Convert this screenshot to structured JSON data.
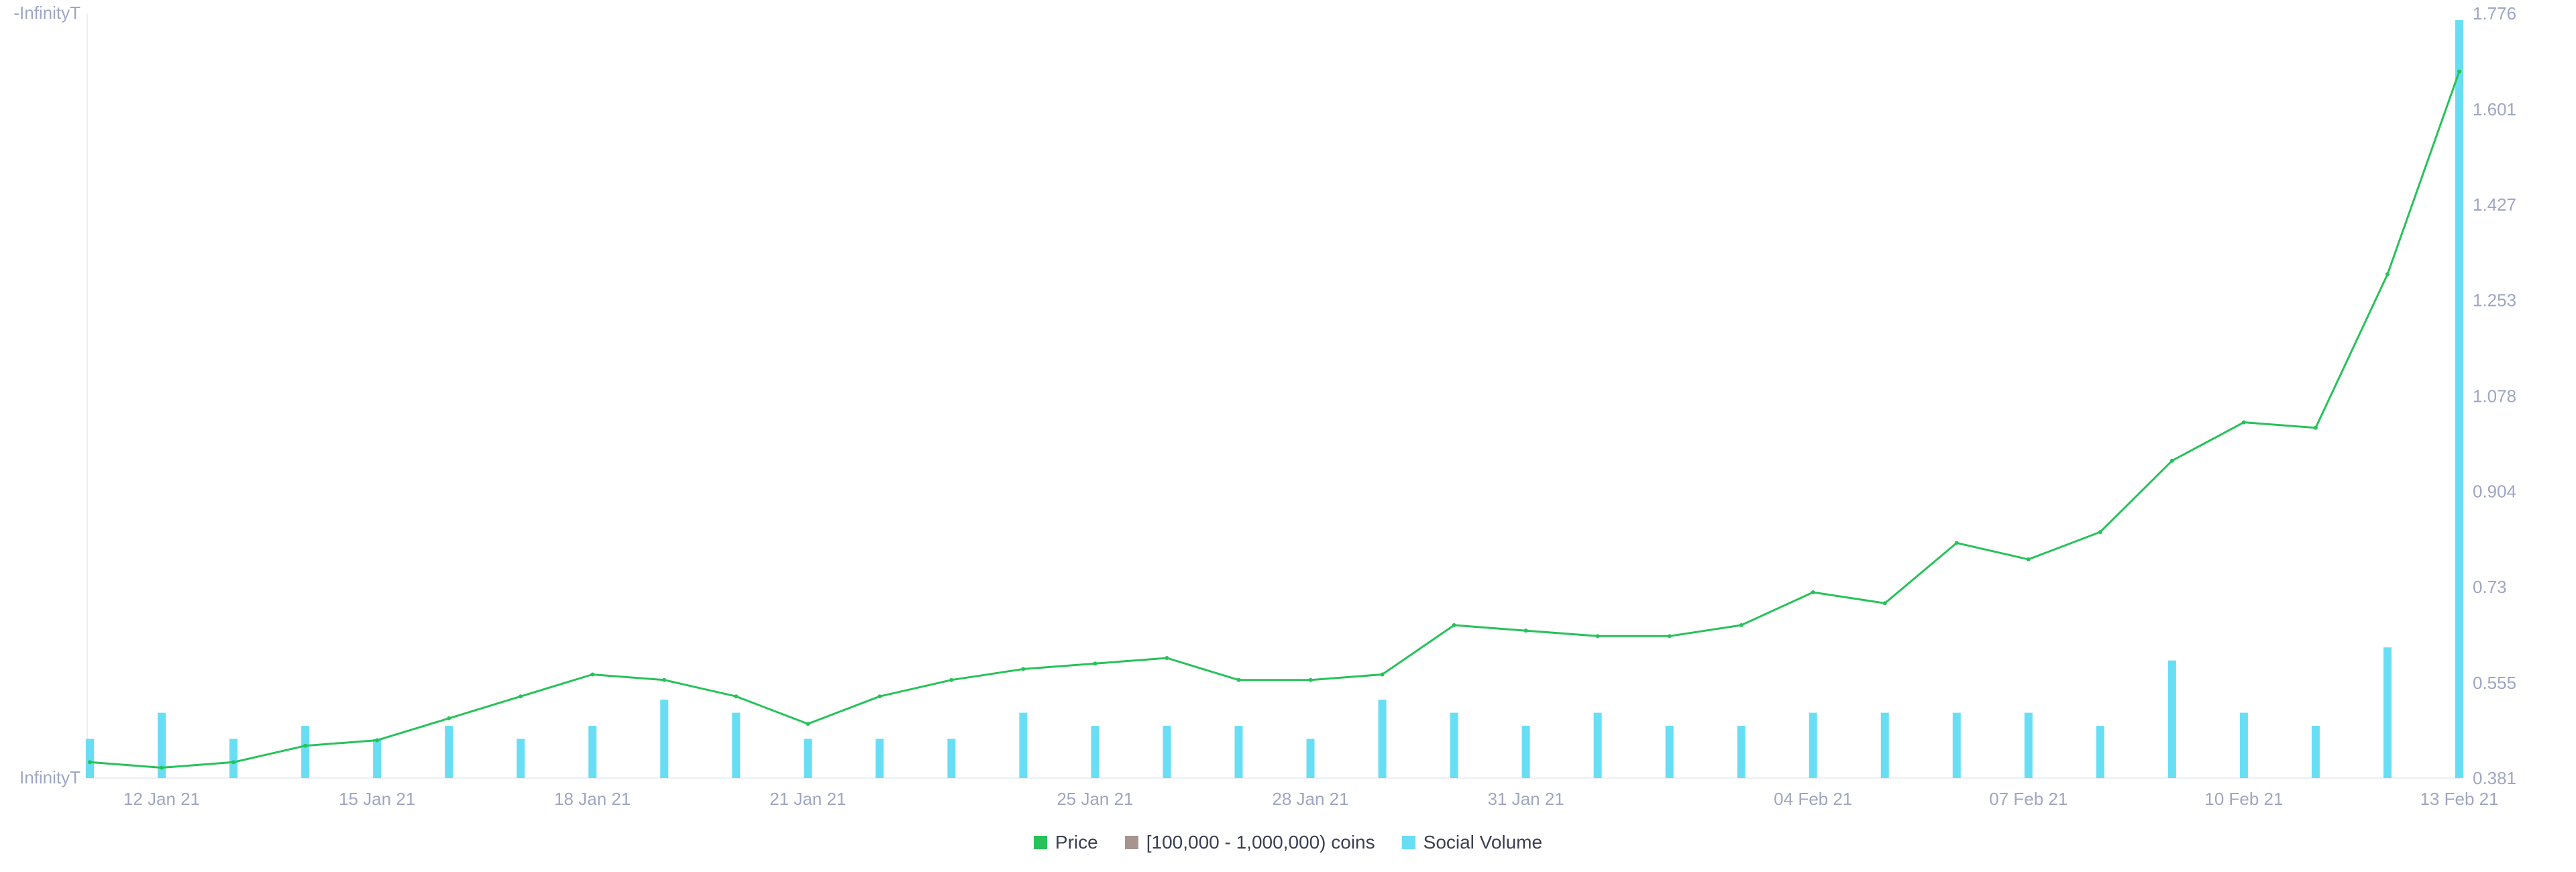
{
  "chart_data": {
    "type": "line",
    "title": "",
    "x_ticks": [
      "12 Jan 21",
      "15 Jan 21",
      "18 Jan 21",
      "21 Jan 21",
      "25 Jan 21",
      "28 Jan 21",
      "31 Jan 21",
      "04 Feb 21",
      "07 Feb 21",
      "10 Feb 21",
      "13 Feb 21"
    ],
    "left_axis": {
      "top_label": "-InfinityT",
      "bottom_label": "InfinityT"
    },
    "right_axis": {
      "ticks": [
        "1.776",
        "1.601",
        "1.427",
        "1.253",
        "1.078",
        "0.904",
        "0.73",
        "0.555",
        "0.381"
      ],
      "ylim": [
        0.381,
        1.776
      ]
    },
    "legend": [
      {
        "name": "Price",
        "color": "#26c25a"
      },
      {
        "name": "[100,000  - 1,000,000) coins",
        "color": "#a6948e"
      },
      {
        "name": "Social Volume",
        "color": "#68def5"
      }
    ],
    "series": [
      {
        "name": "Price",
        "color": "#26c25a",
        "x": [
          "11 Jan 21",
          "12 Jan 21",
          "13 Jan 21",
          "14 Jan 21",
          "15 Jan 21",
          "16 Jan 21",
          "17 Jan 21",
          "18 Jan 21",
          "19 Jan 21",
          "20 Jan 21",
          "21 Jan 21",
          "22 Jan 21",
          "23 Jan 21",
          "24 Jan 21",
          "25 Jan 21",
          "26 Jan 21",
          "27 Jan 21",
          "28 Jan 21",
          "29 Jan 21",
          "30 Jan 21",
          "31 Jan 21",
          "01 Feb 21",
          "02 Feb 21",
          "03 Feb 21",
          "04 Feb 21",
          "05 Feb 21",
          "06 Feb 21",
          "07 Feb 21",
          "08 Feb 21",
          "09 Feb 21",
          "10 Feb 21",
          "11 Feb 21",
          "12 Feb 21",
          "13 Feb 21"
        ],
        "values": [
          0.41,
          0.4,
          0.41,
          0.44,
          0.45,
          0.49,
          0.53,
          0.57,
          0.56,
          0.53,
          0.48,
          0.53,
          0.56,
          0.58,
          0.59,
          0.6,
          0.56,
          0.56,
          0.57,
          0.66,
          0.65,
          0.64,
          0.64,
          0.66,
          0.72,
          0.7,
          0.81,
          0.78,
          0.83,
          0.96,
          1.03,
          1.02,
          1.3,
          1.67
        ]
      },
      {
        "name": "Social Volume",
        "color": "#68def5",
        "type": "bar",
        "x": [
          "11 Jan 21",
          "12 Jan 21",
          "13 Jan 21",
          "14 Jan 21",
          "15 Jan 21",
          "16 Jan 21",
          "17 Jan 21",
          "18 Jan 21",
          "19 Jan 21",
          "20 Jan 21",
          "21 Jan 21",
          "22 Jan 21",
          "23 Jan 21",
          "24 Jan 21",
          "25 Jan 21",
          "26 Jan 21",
          "27 Jan 21",
          "28 Jan 21",
          "29 Jan 21",
          "30 Jan 21",
          "31 Jan 21",
          "01 Feb 21",
          "02 Feb 21",
          "03 Feb 21",
          "04 Feb 21",
          "05 Feb 21",
          "06 Feb 21",
          "07 Feb 21",
          "08 Feb 21",
          "09 Feb 21",
          "10 Feb 21",
          "11 Feb 21",
          "12 Feb 21",
          "13 Feb 21"
        ],
        "values": [
          3,
          5,
          3,
          4,
          3,
          4,
          3,
          4,
          6,
          5,
          3,
          3,
          3,
          5,
          4,
          4,
          4,
          3,
          6,
          5,
          4,
          5,
          4,
          4,
          5,
          5,
          5,
          5,
          4,
          9,
          5,
          4,
          10,
          58
        ]
      }
    ]
  }
}
